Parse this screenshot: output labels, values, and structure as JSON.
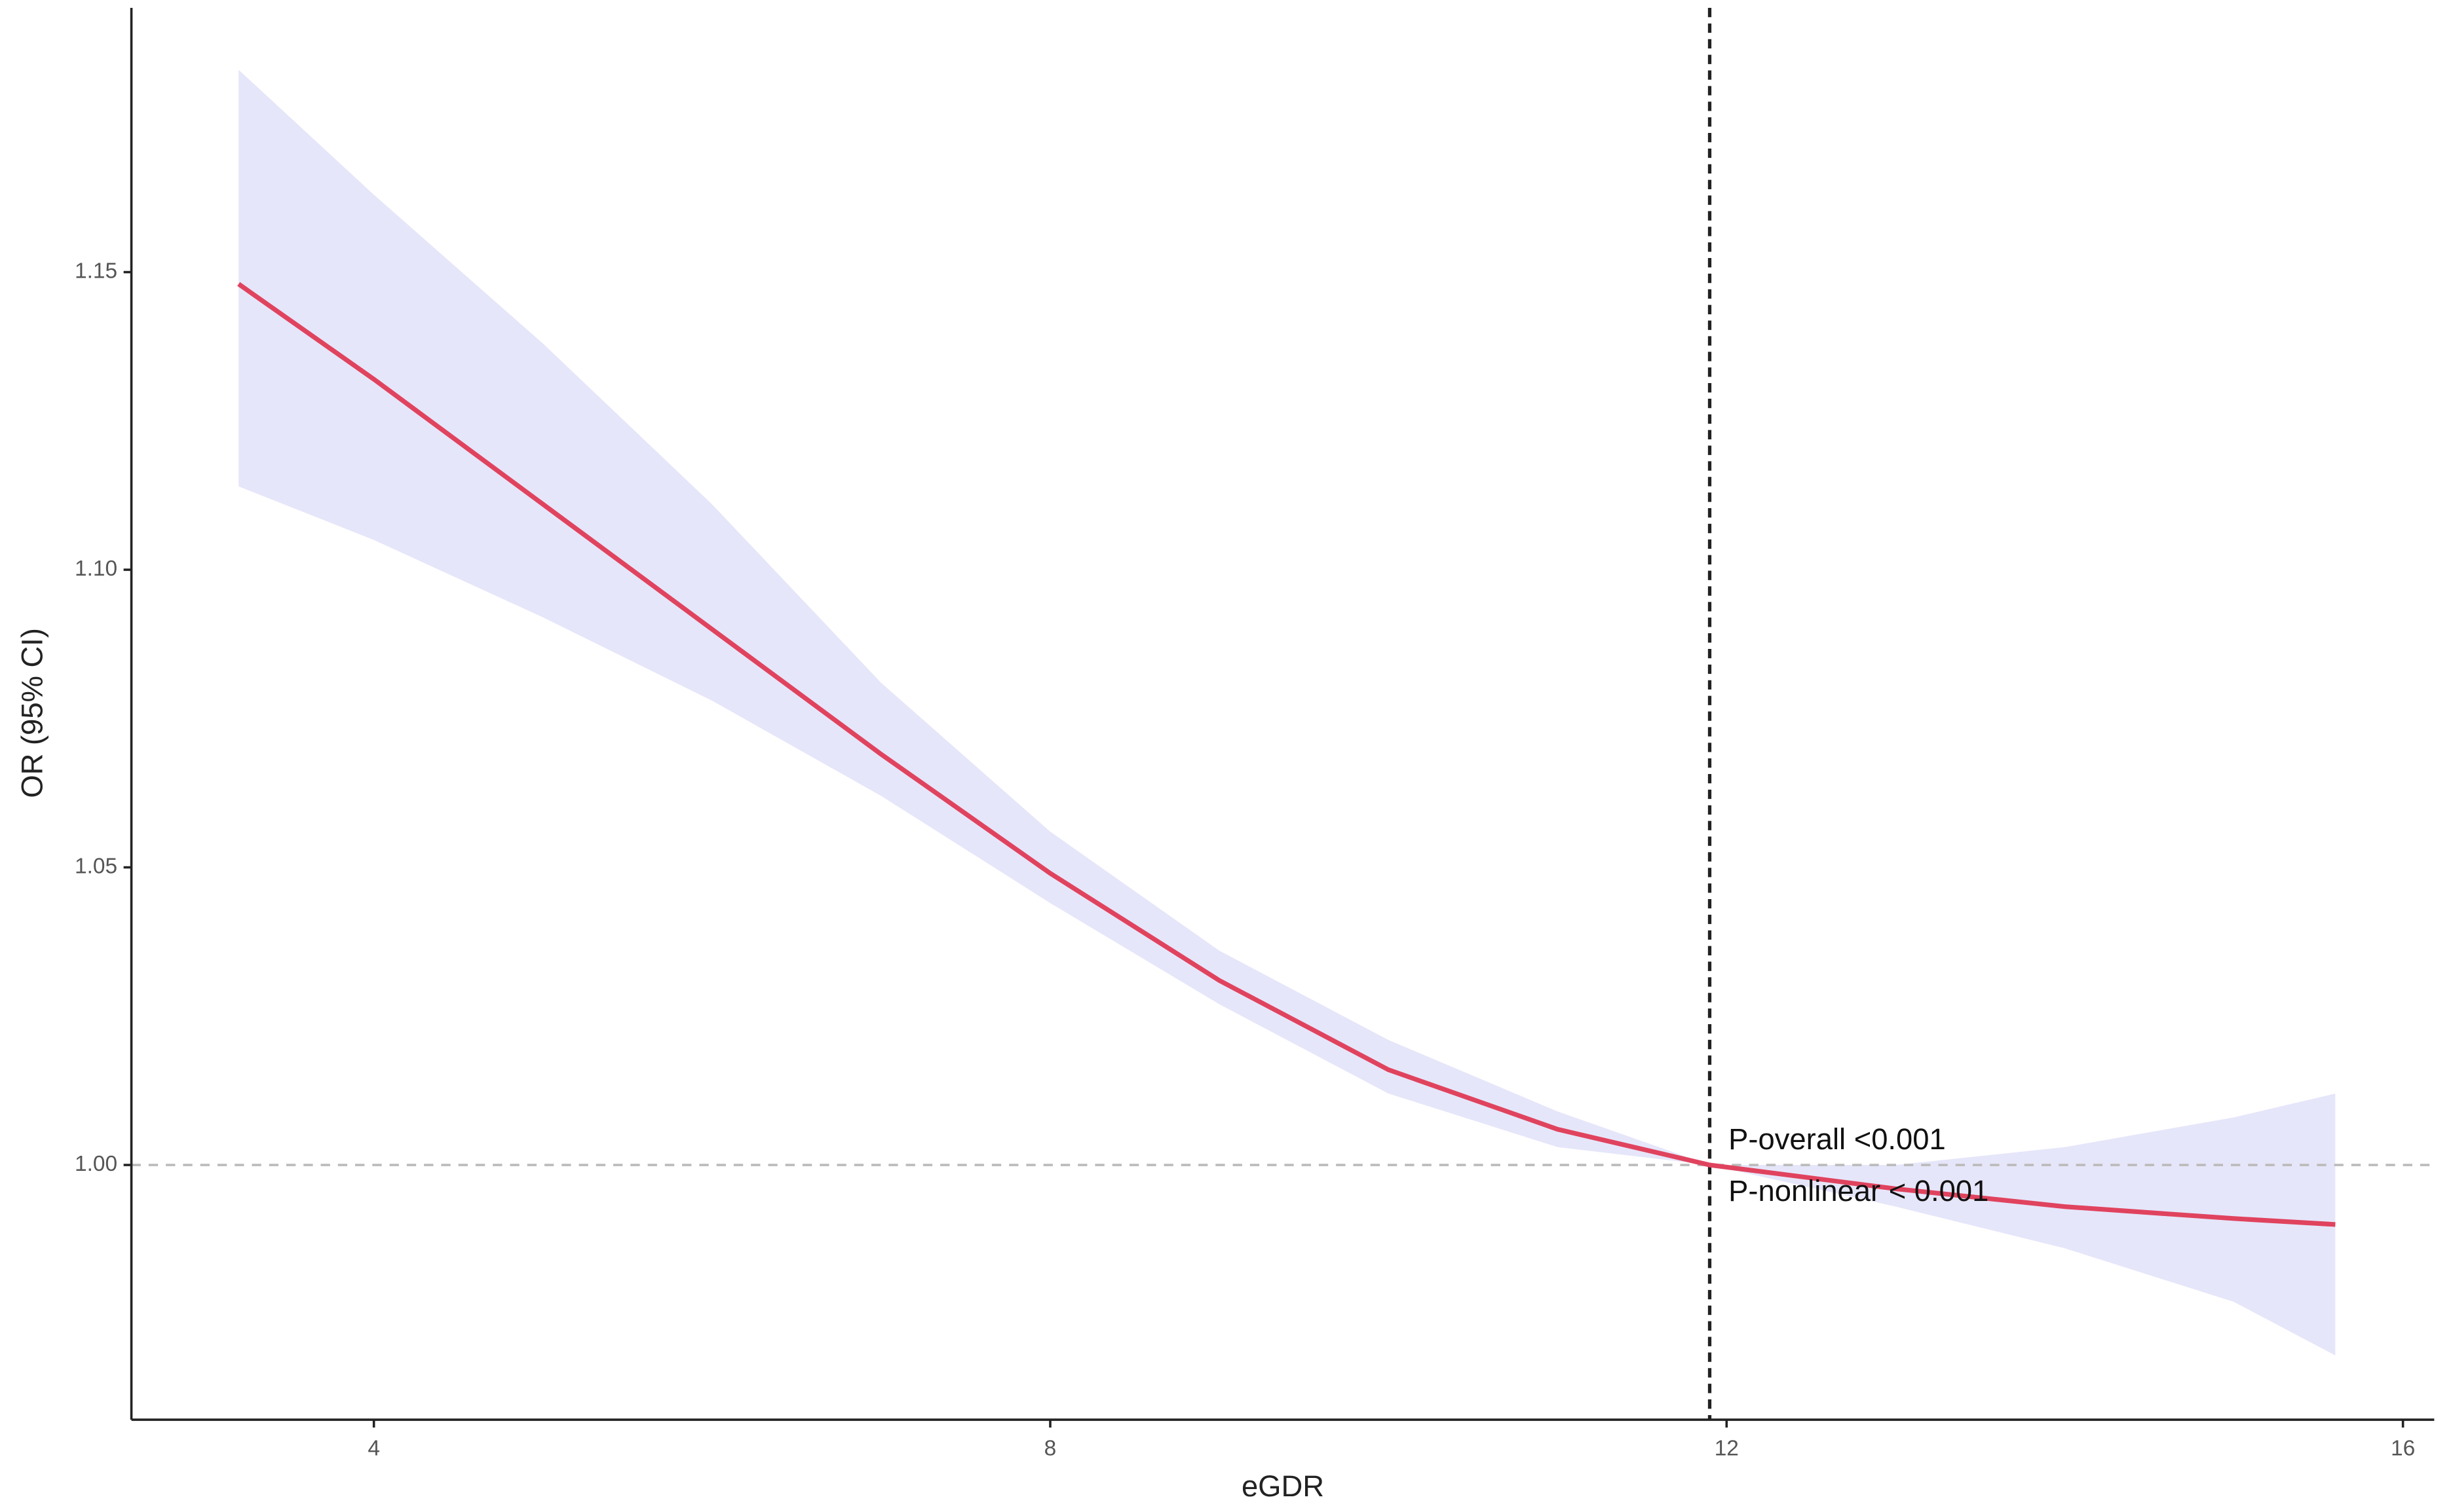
{
  "chart_data": {
    "type": "line",
    "xlabel": "eGDR",
    "ylabel": "OR (95% CI)",
    "x": [
      3.2,
      4,
      5,
      6,
      7,
      8,
      9,
      10,
      11,
      11.9,
      13,
      14,
      15,
      15.6
    ],
    "values": [
      1.148,
      1.132,
      1.111,
      1.09,
      1.069,
      1.049,
      1.031,
      1.016,
      1.006,
      1.0,
      0.996,
      0.993,
      0.991,
      0.99
    ],
    "lower": [
      1.114,
      1.105,
      1.092,
      1.078,
      1.062,
      1.044,
      1.027,
      1.012,
      1.003,
      1.0,
      0.993,
      0.986,
      0.977,
      0.968
    ],
    "upper": [
      1.184,
      1.163,
      1.138,
      1.111,
      1.081,
      1.056,
      1.036,
      1.021,
      1.009,
      1.0,
      1.0,
      1.003,
      1.008,
      1.012
    ],
    "color": "#e0435e",
    "band_color": "#e6e6fa",
    "xlim": [
      2.566,
      16.185
    ],
    "ylim": [
      0.9572,
      1.1944
    ],
    "xticks": [
      4,
      8,
      12,
      16
    ],
    "yticks": [
      {
        "value": 1,
        "label": "1.00"
      },
      1.05,
      {
        "value": 1.1,
        "label": "1.10"
      },
      1.15
    ],
    "vline": 11.9,
    "hline": 1,
    "annotations": [
      "P-overall <0.001",
      "P-nonlinear < 0.001"
    ]
  }
}
